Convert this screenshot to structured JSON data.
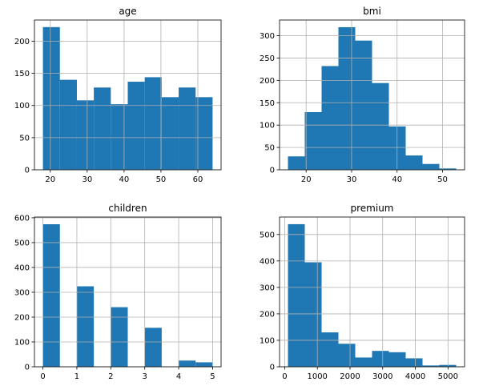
{
  "chart_data": [
    {
      "type": "bar",
      "title": "age",
      "bin_edges": [
        18,
        22.6,
        27.2,
        31.8,
        36.4,
        41,
        45.6,
        50.2,
        54.8,
        59.4,
        64
      ],
      "values": [
        222,
        140,
        108,
        128,
        102,
        137,
        144,
        113,
        128,
        113
      ],
      "xlim": [
        15.7,
        66.3
      ],
      "ylim": [
        0,
        233
      ],
      "xticks": [
        20,
        30,
        40,
        50,
        60
      ],
      "yticks": [
        0,
        50,
        100,
        150,
        200
      ],
      "grid": true,
      "color": "#1f77b4"
    },
    {
      "type": "bar",
      "title": "bmi",
      "bin_edges": [
        16.0,
        19.7,
        23.4,
        27.1,
        30.8,
        34.5,
        38.2,
        41.9,
        45.6,
        49.3,
        53.0
      ],
      "values": [
        30,
        129,
        232,
        319,
        289,
        194,
        97,
        32,
        13,
        3
      ],
      "xlim": [
        14.15,
        54.85
      ],
      "ylim": [
        0,
        335
      ],
      "xticks": [
        20,
        30,
        40,
        50
      ],
      "yticks": [
        0,
        50,
        100,
        150,
        200,
        250,
        300
      ],
      "grid": true,
      "color": "#1f77b4"
    },
    {
      "type": "bar",
      "title": "children",
      "bin_edges": [
        0,
        0.5,
        1,
        1.5,
        2,
        2.5,
        3,
        3.5,
        4,
        4.5,
        5
      ],
      "values": [
        574,
        0,
        324,
        0,
        240,
        0,
        157,
        0,
        25,
        18
      ],
      "xlim": [
        -0.25,
        5.25
      ],
      "ylim": [
        0,
        603
      ],
      "xticks": [
        0,
        1,
        2,
        3,
        4,
        5
      ],
      "yticks": [
        0,
        100,
        200,
        300,
        400,
        500,
        600
      ],
      "grid": true,
      "color": "#1f77b4"
    },
    {
      "type": "bar",
      "title": "premium",
      "bin_edges": [
        100,
        615,
        1130,
        1645,
        2160,
        2675,
        3190,
        3705,
        4220,
        4735,
        5250
      ],
      "values": [
        539,
        395,
        130,
        87,
        35,
        60,
        55,
        32,
        5,
        7
      ],
      "xlim": [
        -157.5,
        5507.5
      ],
      "ylim": [
        0,
        566
      ],
      "xticks": [
        0,
        1000,
        2000,
        3000,
        4000,
        5000
      ],
      "yticks": [
        0,
        100,
        200,
        300,
        400,
        500
      ],
      "grid": true,
      "color": "#1f77b4"
    }
  ]
}
